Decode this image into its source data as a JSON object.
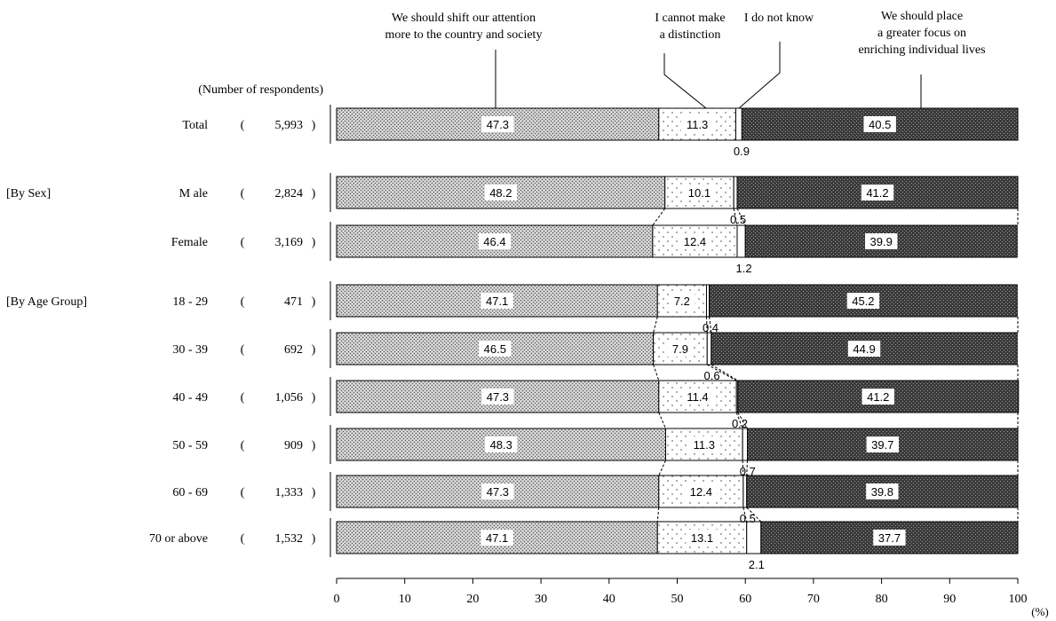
{
  "chart_data": {
    "type": "bar",
    "orientation": "horizontal",
    "stacked": true,
    "legend_labels": [
      [
        "We should shift our attention",
        "more to the country and society"
      ],
      [
        "I cannot make",
        "a distinction"
      ],
      [
        "I do not know"
      ],
      [
        "We should place",
        "a greater focus on",
        "enriching individual lives"
      ]
    ],
    "n_header": "(Number of respondents)",
    "groups": [
      {
        "label": "",
        "rows": [
          0
        ]
      },
      {
        "label": "[By Sex]",
        "rows": [
          1,
          2
        ]
      },
      {
        "label": "[By Age Group]",
        "rows": [
          3,
          4,
          5,
          6,
          7,
          8
        ]
      }
    ],
    "categories": [
      "Total",
      "M ale",
      "Female",
      "18 - 29",
      "30 - 39",
      "40 - 49",
      "50 - 59",
      "60 - 69",
      "70 or above"
    ],
    "respondents": [
      "5,993",
      "2,824",
      "3,169",
      "471",
      "692",
      "1,056",
      "909",
      "1,333",
      "1,532"
    ],
    "series": [
      {
        "values": [
          47.3,
          48.2,
          46.4,
          47.1,
          46.5,
          47.3,
          48.3,
          47.3,
          47.1
        ],
        "labels": [
          "47.3",
          "48.2",
          "46.4",
          "47.1",
          "46.5",
          "47.3",
          "48.3",
          "47.3",
          "47.1"
        ]
      },
      {
        "values": [
          11.3,
          10.1,
          12.4,
          7.2,
          7.9,
          11.4,
          11.3,
          12.4,
          13.1
        ],
        "labels": [
          "11.3",
          "10.1",
          "12.4",
          "7.2",
          "7.9",
          "11.4",
          "11.3",
          "12.4",
          "13.1"
        ]
      },
      {
        "values": [
          0.9,
          0.5,
          1.2,
          0.4,
          0.6,
          0.2,
          0.7,
          0.5,
          2.1
        ],
        "labels": [
          "0.9",
          "0.5",
          "1.2",
          "0.4",
          "0.6",
          "0.2",
          "0.7",
          "0.5",
          "2.1"
        ]
      },
      {
        "values": [
          40.5,
          41.2,
          39.9,
          45.2,
          44.9,
          41.2,
          39.7,
          39.8,
          37.7
        ],
        "labels": [
          "40.5",
          "41.2",
          "39.9",
          "45.2",
          "44.9",
          "41.2",
          "39.7",
          "39.8",
          "37.7"
        ]
      }
    ],
    "xlim": [
      0,
      100
    ],
    "xticks": [
      "0",
      "10",
      "20",
      "30",
      "40",
      "50",
      "60",
      "70",
      "80",
      "90",
      "100"
    ],
    "x_unit": "(%)"
  }
}
